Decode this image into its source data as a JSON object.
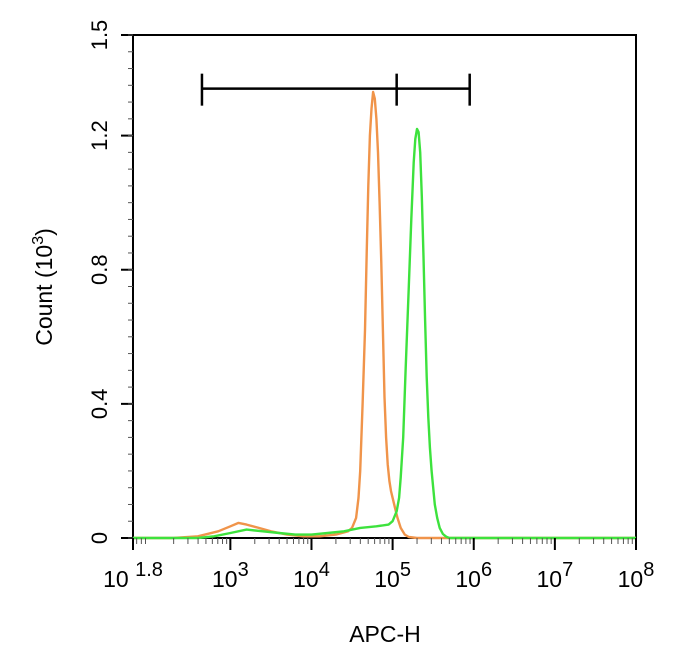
{
  "chart_data": {
    "type": "line",
    "xlabel": "APC-H",
    "ylabel": "Count",
    "ylabel_unit_base": "10",
    "ylabel_unit_exp": "3",
    "x_scale": "log",
    "xlim": [
      1.8,
      8
    ],
    "ylim": [
      0,
      1.5
    ],
    "x_ticks": [
      {
        "exp": 1.8,
        "base": "10",
        "sup": "1.8"
      },
      {
        "exp": 3,
        "base": "10",
        "sup": "3"
      },
      {
        "exp": 4,
        "base": "10",
        "sup": "4"
      },
      {
        "exp": 5,
        "base": "10",
        "sup": "5"
      },
      {
        "exp": 6,
        "base": "10",
        "sup": "6"
      },
      {
        "exp": 7,
        "base": "10",
        "sup": "7"
      },
      {
        "exp": 8,
        "base": "10",
        "sup": "8"
      }
    ],
    "y_ticks": [
      {
        "value": 0,
        "label": "0"
      },
      {
        "value": 0.4,
        "label": "0.4"
      },
      {
        "value": 0.8,
        "label": "0.8"
      },
      {
        "value": 1.2,
        "label": "1.2"
      },
      {
        "value": 1.5,
        "label": "1.5"
      }
    ],
    "gate": {
      "x_start_log": 2.65,
      "x_mid_log": 5.05,
      "x_end_log": 5.95,
      "y": 1.34
    },
    "grid": false,
    "legend": "none",
    "series": [
      {
        "color": "#f0944a",
        "x_log": [
          1.8,
          2.3,
          2.6,
          2.85,
          3.0,
          3.1,
          3.2,
          3.35,
          3.5,
          3.7,
          3.9,
          4.1,
          4.3,
          4.45,
          4.5,
          4.55,
          4.58,
          4.6,
          4.63,
          4.66,
          4.68,
          4.7,
          4.72,
          4.74,
          4.76,
          4.78,
          4.8,
          4.82,
          4.84,
          4.86,
          4.88,
          4.9,
          4.92,
          4.94,
          4.96,
          4.98,
          5.0,
          5.03,
          5.06,
          5.1,
          5.15,
          5.2,
          5.3,
          5.5,
          8.0
        ],
        "y": [
          0.0,
          0.0,
          0.005,
          0.02,
          0.035,
          0.045,
          0.04,
          0.03,
          0.02,
          0.01,
          0.005,
          0.005,
          0.01,
          0.02,
          0.03,
          0.06,
          0.12,
          0.2,
          0.4,
          0.62,
          0.85,
          1.05,
          1.2,
          1.28,
          1.33,
          1.31,
          1.25,
          1.15,
          1.0,
          0.82,
          0.62,
          0.42,
          0.3,
          0.22,
          0.17,
          0.14,
          0.12,
          0.09,
          0.06,
          0.03,
          0.01,
          0.003,
          0.0,
          0.0,
          0.0
        ]
      },
      {
        "color": "#3de23d",
        "x_log": [
          1.8,
          2.6,
          2.8,
          3.0,
          3.2,
          3.4,
          3.6,
          3.8,
          4.0,
          4.2,
          4.4,
          4.6,
          4.8,
          4.95,
          5.0,
          5.05,
          5.08,
          5.1,
          5.13,
          5.16,
          5.2,
          5.23,
          5.26,
          5.28,
          5.3,
          5.32,
          5.34,
          5.36,
          5.38,
          5.4,
          5.42,
          5.44,
          5.46,
          5.48,
          5.5,
          5.52,
          5.55,
          5.58,
          5.62,
          5.66,
          5.7,
          5.8,
          6.0,
          8.0
        ],
        "y": [
          0.0,
          0.0,
          0.005,
          0.015,
          0.025,
          0.02,
          0.015,
          0.01,
          0.01,
          0.015,
          0.02,
          0.03,
          0.035,
          0.04,
          0.05,
          0.08,
          0.12,
          0.18,
          0.3,
          0.5,
          0.75,
          0.95,
          1.12,
          1.19,
          1.22,
          1.21,
          1.15,
          1.02,
          0.85,
          0.65,
          0.48,
          0.36,
          0.27,
          0.2,
          0.15,
          0.1,
          0.06,
          0.03,
          0.012,
          0.004,
          0.0,
          0.0,
          0.0,
          0.0
        ]
      }
    ]
  }
}
